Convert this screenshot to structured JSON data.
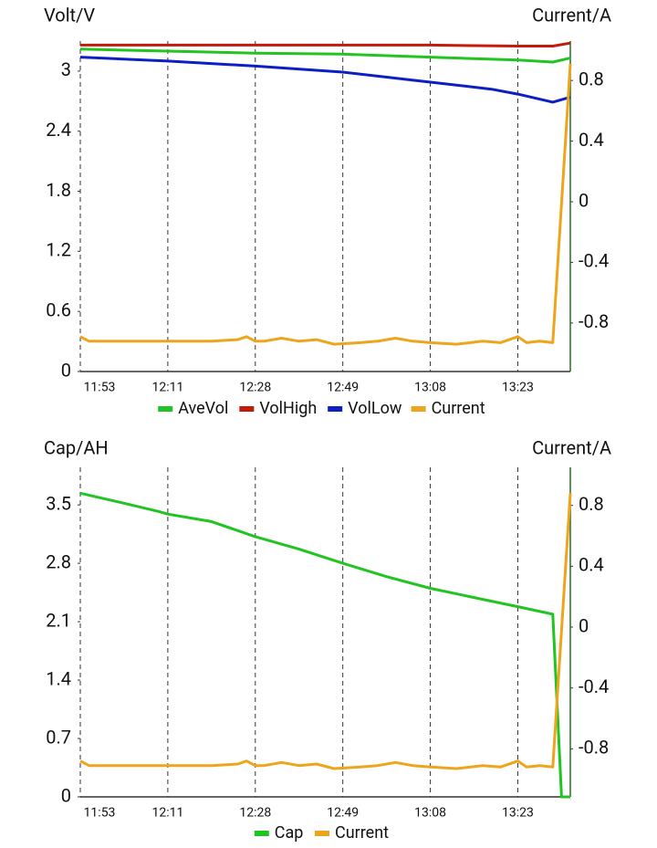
{
  "chart_data": [
    {
      "type": "line",
      "y_label": "Volt/V",
      "y2_label": "Current/A",
      "xlim": [
        0,
        5.6
      ],
      "xticks": [
        {
          "value": 0,
          "label": "11:53"
        },
        {
          "value": 1,
          "label": "12:11"
        },
        {
          "value": 2,
          "label": "12:28"
        },
        {
          "value": 3,
          "label": "12:49"
        },
        {
          "value": 4,
          "label": "13:08"
        },
        {
          "value": 5,
          "label": "13:23"
        }
      ],
      "ylim": [
        0,
        3.3
      ],
      "yticks": [
        0,
        0.6,
        1.2,
        1.8,
        2.4,
        3.0
      ],
      "y2lim": [
        -1.12,
        1.06
      ],
      "y2ticks": [
        -0.8,
        -0.4,
        0,
        0.4,
        0.8
      ],
      "grid": true,
      "series": [
        {
          "name": "AveVol",
          "color": "#22c422",
          "x": [
            0,
            1,
            2,
            3,
            4,
            5,
            5.4,
            5.6
          ],
          "values": [
            3.22,
            3.2,
            3.18,
            3.17,
            3.14,
            3.11,
            3.09,
            3.13
          ]
        },
        {
          "name": "VolHigh",
          "color": "#c41a0c",
          "x": [
            0,
            1,
            2,
            3,
            4,
            5,
            5.4,
            5.6
          ],
          "values": [
            3.26,
            3.26,
            3.26,
            3.26,
            3.26,
            3.25,
            3.25,
            3.28
          ]
        },
        {
          "name": "VolLow",
          "color": "#0b1fc4",
          "x": [
            0,
            1,
            2,
            3,
            4,
            4.7,
            5,
            5.4,
            5.6
          ],
          "values": [
            3.14,
            3.1,
            3.05,
            2.99,
            2.89,
            2.82,
            2.77,
            2.69,
            2.74
          ]
        },
        {
          "name": "Current",
          "color": "#eea51c",
          "axis": "y2",
          "x": [
            0,
            0.1,
            0.3,
            0.6,
            0.9,
            1.2,
            1.5,
            1.8,
            1.9,
            2.0,
            2.1,
            2.3,
            2.5,
            2.7,
            2.9,
            3.2,
            3.4,
            3.6,
            3.8,
            4.0,
            4.3,
            4.6,
            4.8,
            5.0,
            5.1,
            5.25,
            5.4,
            5.6
          ],
          "values": [
            -0.89,
            -0.92,
            -0.92,
            -0.92,
            -0.92,
            -0.92,
            -0.92,
            -0.91,
            -0.89,
            -0.92,
            -0.92,
            -0.9,
            -0.92,
            -0.91,
            -0.94,
            -0.93,
            -0.92,
            -0.9,
            -0.92,
            -0.93,
            -0.94,
            -0.92,
            -0.93,
            -0.89,
            -0.93,
            -0.92,
            -0.93,
            0.91
          ]
        }
      ]
    },
    {
      "type": "line",
      "y_label": "Cap/AH",
      "y2_label": "Current/A",
      "xlim": [
        0,
        5.6
      ],
      "xticks": [
        {
          "value": 0,
          "label": "11:53"
        },
        {
          "value": 1,
          "label": "12:11"
        },
        {
          "value": 2,
          "label": "12:28"
        },
        {
          "value": 3,
          "label": "12:49"
        },
        {
          "value": 4,
          "label": "13:08"
        },
        {
          "value": 5,
          "label": "13:23"
        }
      ],
      "ylim": [
        0,
        3.95
      ],
      "yticks": [
        0,
        0.7,
        1.4,
        2.1,
        2.8,
        3.5
      ],
      "y2lim": [
        -1.116,
        1.05
      ],
      "y2ticks": [
        -0.8,
        -0.4,
        0,
        0.4,
        0.8
      ],
      "grid": true,
      "series": [
        {
          "name": "Cap",
          "color": "#22c422",
          "x": [
            0,
            0.5,
            0.9,
            1.0,
            1.5,
            2.0,
            2.5,
            3.0,
            3.5,
            4.0,
            4.5,
            5.0,
            5.4,
            5.5,
            5.6
          ],
          "values": [
            3.64,
            3.52,
            3.42,
            3.39,
            3.3,
            3.12,
            2.97,
            2.8,
            2.64,
            2.5,
            2.39,
            2.28,
            2.19,
            0,
            0
          ]
        },
        {
          "name": "Current",
          "color": "#eea51c",
          "axis": "y2",
          "x": [
            0,
            0.1,
            0.3,
            0.6,
            0.9,
            1.2,
            1.5,
            1.8,
            1.9,
            2.0,
            2.1,
            2.3,
            2.5,
            2.7,
            2.9,
            3.2,
            3.4,
            3.6,
            3.8,
            4.0,
            4.3,
            4.6,
            4.8,
            5.0,
            5.1,
            5.25,
            5.4,
            5.6
          ],
          "values": [
            -0.88,
            -0.91,
            -0.91,
            -0.91,
            -0.91,
            -0.91,
            -0.91,
            -0.9,
            -0.88,
            -0.91,
            -0.91,
            -0.89,
            -0.91,
            -0.9,
            -0.93,
            -0.92,
            -0.91,
            -0.89,
            -0.91,
            -0.92,
            -0.93,
            -0.91,
            -0.92,
            -0.88,
            -0.92,
            -0.91,
            -0.92,
            0.88
          ]
        }
      ]
    }
  ]
}
